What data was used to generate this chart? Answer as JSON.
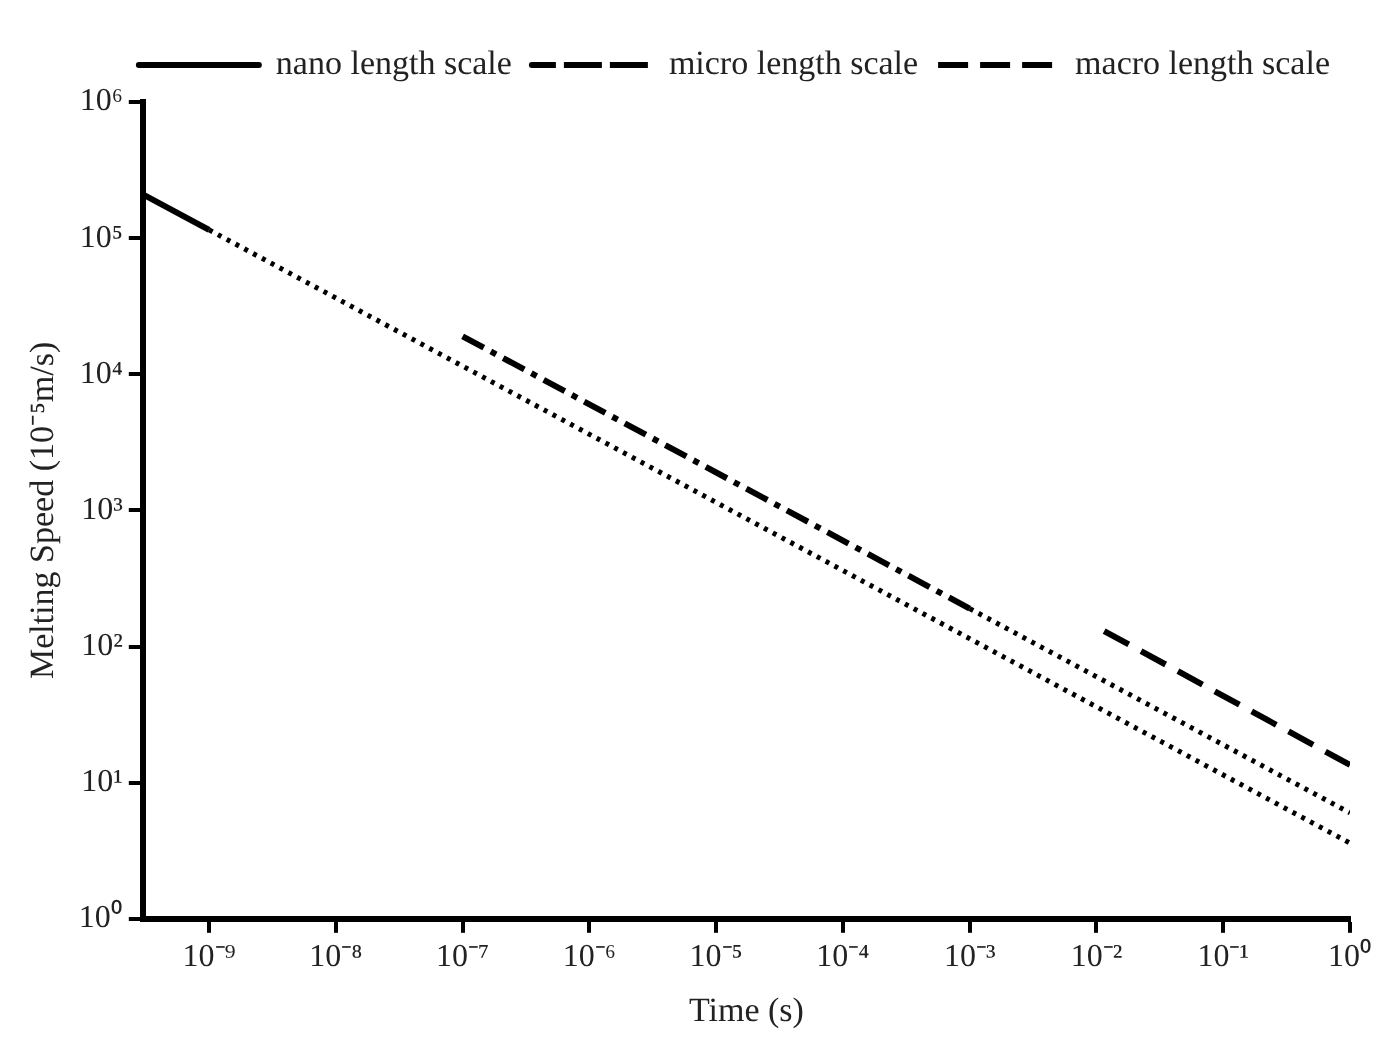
{
  "chart_data": {
    "type": "line",
    "xlabel": "Time (s)",
    "ylabel": "Melting Speed (10⁻⁵m/s)",
    "log": "xy",
    "grid": false,
    "legend": "top right",
    "marker": "none",
    "xlim": [
      3e-10,
      1
    ],
    "ylim": [
      1,
      1000000
    ],
    "xticks": [
      {
        "value": 1e-09,
        "label": "10⁻⁹"
      },
      {
        "value": 1e-08,
        "label": "10⁻⁸"
      },
      {
        "value": 1e-07,
        "label": "10⁻⁷"
      },
      {
        "value": 1e-06,
        "label": "10⁻⁶"
      },
      {
        "value": 1e-05,
        "label": "10⁻⁵"
      },
      {
        "value": 0.0001,
        "label": "10⁻⁴"
      },
      {
        "value": 0.001,
        "label": "10⁻³"
      },
      {
        "value": 0.01,
        "label": "10⁻²"
      },
      {
        "value": 0.1,
        "label": "10⁻¹"
      },
      {
        "value": 1,
        "label": "10⁰"
      }
    ],
    "yticks": [
      {
        "value": 1,
        "label": "10⁰"
      },
      {
        "value": 10,
        "label": "10¹"
      },
      {
        "value": 100,
        "label": "10²"
      },
      {
        "value": 1000,
        "label": "10³"
      },
      {
        "value": 10000,
        "label": "10⁴"
      },
      {
        "value": 100000,
        "label": "10⁵"
      },
      {
        "value": 1000000,
        "label": "10⁶"
      }
    ],
    "series": [
      {
        "name": "nano length scale",
        "color": "#000000",
        "line_style": [
          "solid",
          "dotted"
        ],
        "x": [
          3e-10,
          1e-09,
          1
        ],
        "values": [
          210000,
          115000,
          3.6
        ]
      },
      {
        "name": "micro length scale",
        "color": "#000000",
        "line_style": [
          "dashdot",
          "dotted"
        ],
        "x": [
          1e-07,
          0.001,
          1
        ],
        "values": [
          19000,
          190,
          6
        ]
      },
      {
        "name": "macro length scale",
        "color": "#000000",
        "line_style": [
          "dashed"
        ],
        "x": [
          0.0115,
          1
        ],
        "values": [
          130,
          13.5
        ]
      }
    ]
  }
}
